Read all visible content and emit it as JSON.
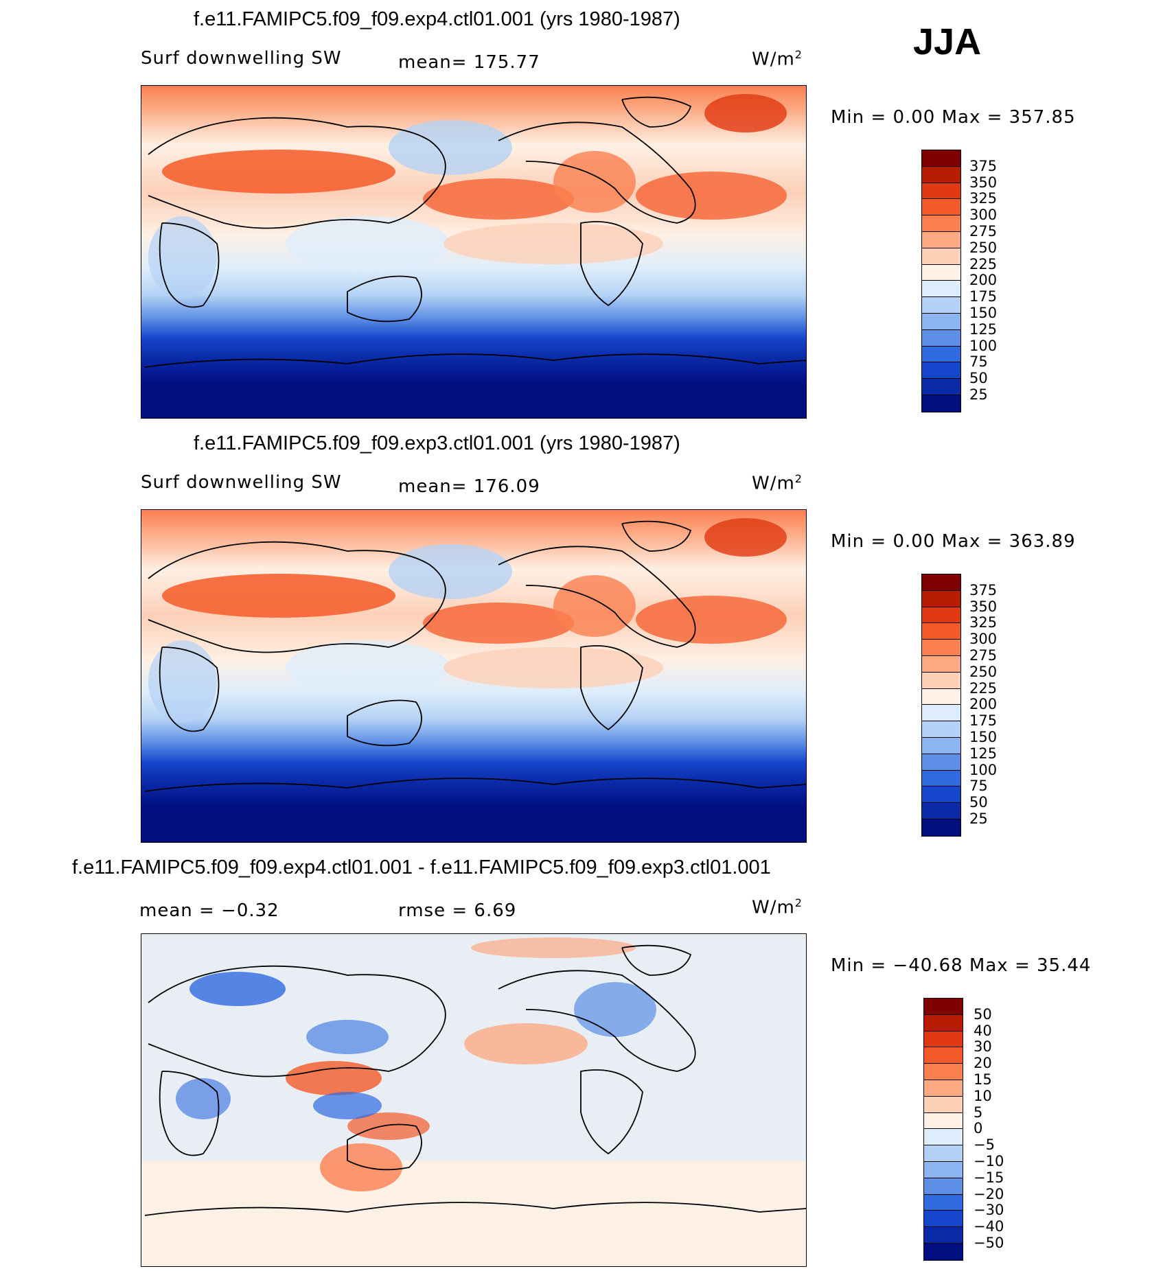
{
  "season": "JJA",
  "panels": [
    {
      "title": "f.e11.FAMIPC5.f09_f09.exp4.ctl01.001 (yrs 1980-1987)",
      "variable": "Surf downwelling SW",
      "stat_left": "mean= 175.77",
      "units": "W/m",
      "units_sup": "2",
      "minmax": "Min =    0.00 Max = 357.85",
      "levels": [
        "375",
        "350",
        "325",
        "300",
        "275",
        "250",
        "225",
        "200",
        "175",
        "150",
        "125",
        "100",
        "75",
        "50",
        "25"
      ],
      "colors": [
        "#800000",
        "#b81c00",
        "#e03810",
        "#f45a28",
        "#fa8050",
        "#fcaa84",
        "#fdd0b8",
        "#fef0e4",
        "#deedfb",
        "#b4d2f5",
        "#8cb4ee",
        "#5d8fe6",
        "#2f6ae0",
        "#1646cc",
        "#0a2aa8",
        "#000e80"
      ]
    },
    {
      "title": "f.e11.FAMIPC5.f09_f09.exp3.ctl01.001 (yrs 1980-1987)",
      "variable": "Surf downwelling SW",
      "stat_left": "mean= 176.09",
      "units": "W/m",
      "units_sup": "2",
      "minmax": "Min =    0.00 Max = 363.89",
      "levels": [
        "375",
        "350",
        "325",
        "300",
        "275",
        "250",
        "225",
        "200",
        "175",
        "150",
        "125",
        "100",
        "75",
        "50",
        "25"
      ],
      "colors": [
        "#800000",
        "#b81c00",
        "#e03810",
        "#f45a28",
        "#fa8050",
        "#fcaa84",
        "#fdd0b8",
        "#fef0e4",
        "#deedfb",
        "#b4d2f5",
        "#8cb4ee",
        "#5d8fe6",
        "#2f6ae0",
        "#1646cc",
        "#0a2aa8",
        "#000e80"
      ]
    },
    {
      "title": "f.e11.FAMIPC5.f09_f09.exp4.ctl01.001 - f.e11.FAMIPC5.f09_f09.exp3.ctl01.001",
      "stat_left": "mean =   −0.32",
      "stat_mid": "rmse =    6.69",
      "units": "W/m",
      "units_sup": "2",
      "minmax": "Min = −40.68 Max =  35.44",
      "levels": [
        "50",
        "40",
        "30",
        "20",
        "15",
        "10",
        "5",
        "0",
        "−5",
        "−10",
        "−15",
        "−20",
        "−30",
        "−40",
        "−50"
      ],
      "colors": [
        "#800000",
        "#b81c00",
        "#e03810",
        "#f45a28",
        "#fa8050",
        "#fcaa84",
        "#fdd0b8",
        "#fef0e4",
        "#deedfb",
        "#b4d2f5",
        "#8cb4ee",
        "#5d8fe6",
        "#2f6ae0",
        "#1646cc",
        "#0a2aa8",
        "#000e80"
      ]
    }
  ]
}
